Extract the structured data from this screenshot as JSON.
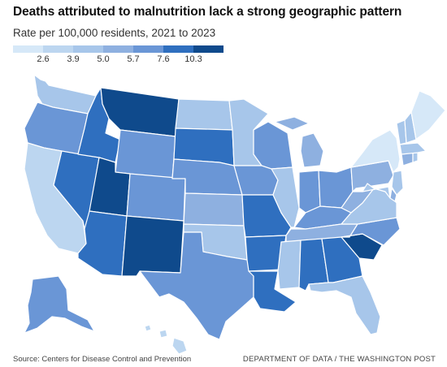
{
  "header": {
    "title": "Deaths attributed to malnutrition lack a strong geographic pattern",
    "subtitle": "Rate per 100,000 residents, 2021 to 2023"
  },
  "legend": {
    "colors": [
      "#d6e8f8",
      "#bcd6f0",
      "#a7c6ea",
      "#8eb0e0",
      "#6a96d6",
      "#2f6fbf",
      "#0f4a8c"
    ],
    "labels": [
      "2.6",
      "3.9",
      "5.0",
      "5.7",
      "7.6",
      "10.3"
    ]
  },
  "map_data": {
    "type": "choropleth",
    "states": [
      {
        "id": "WA",
        "color": "#a7c6ea"
      },
      {
        "id": "OR",
        "color": "#6a96d6"
      },
      {
        "id": "CA",
        "color": "#bcd6f0"
      },
      {
        "id": "NV",
        "color": "#2f6fbf"
      },
      {
        "id": "ID",
        "color": "#2f6fbf"
      },
      {
        "id": "MT",
        "color": "#0f4a8c"
      },
      {
        "id": "WY",
        "color": "#6a96d6"
      },
      {
        "id": "UT",
        "color": "#0f4a8c"
      },
      {
        "id": "AZ",
        "color": "#2f6fbf"
      },
      {
        "id": "CO",
        "color": "#6a96d6"
      },
      {
        "id": "NM",
        "color": "#0f4a8c"
      },
      {
        "id": "ND",
        "color": "#a7c6ea"
      },
      {
        "id": "SD",
        "color": "#2f6fbf"
      },
      {
        "id": "NE",
        "color": "#6a96d6"
      },
      {
        "id": "KS",
        "color": "#8eb0e0"
      },
      {
        "id": "OK",
        "color": "#a7c6ea"
      },
      {
        "id": "TX",
        "color": "#6a96d6"
      },
      {
        "id": "MN",
        "color": "#a7c6ea"
      },
      {
        "id": "IA",
        "color": "#6a96d6"
      },
      {
        "id": "MO",
        "color": "#2f6fbf"
      },
      {
        "id": "AR",
        "color": "#2f6fbf"
      },
      {
        "id": "LA",
        "color": "#2f6fbf"
      },
      {
        "id": "WI",
        "color": "#6a96d6"
      },
      {
        "id": "IL",
        "color": "#a7c6ea"
      },
      {
        "id": "MI",
        "color": "#8eb0e0"
      },
      {
        "id": "IN",
        "color": "#6a96d6"
      },
      {
        "id": "OH",
        "color": "#6a96d6"
      },
      {
        "id": "KY",
        "color": "#6a96d6"
      },
      {
        "id": "TN",
        "color": "#8eb0e0"
      },
      {
        "id": "MS",
        "color": "#a7c6ea"
      },
      {
        "id": "AL",
        "color": "#2f6fbf"
      },
      {
        "id": "GA",
        "color": "#2f6fbf"
      },
      {
        "id": "FL",
        "color": "#a7c6ea"
      },
      {
        "id": "SC",
        "color": "#0f4a8c"
      },
      {
        "id": "NC",
        "color": "#6a96d6"
      },
      {
        "id": "VA",
        "color": "#a7c6ea"
      },
      {
        "id": "WV",
        "color": "#8eb0e0"
      },
      {
        "id": "PA",
        "color": "#8eb0e0"
      },
      {
        "id": "NY",
        "color": "#d6e8f8"
      },
      {
        "id": "NJ",
        "color": "#a7c6ea"
      },
      {
        "id": "DE",
        "color": "#8eb0e0"
      },
      {
        "id": "MD",
        "color": "#a7c6ea"
      },
      {
        "id": "CT",
        "color": "#8eb0e0"
      },
      {
        "id": "RI",
        "color": "#a7c6ea"
      },
      {
        "id": "MA",
        "color": "#a7c6ea"
      },
      {
        "id": "VT",
        "color": "#a7c6ea"
      },
      {
        "id": "NH",
        "color": "#a7c6ea"
      },
      {
        "id": "ME",
        "color": "#d6e8f8"
      },
      {
        "id": "AK",
        "color": "#6a96d6"
      },
      {
        "id": "HI",
        "color": "#bcd6f0"
      }
    ]
  },
  "footer": {
    "source": "Source: Centers for Disease Control and Prevention",
    "credit": "DEPARTMENT OF DATA / THE WASHINGTON POST"
  }
}
